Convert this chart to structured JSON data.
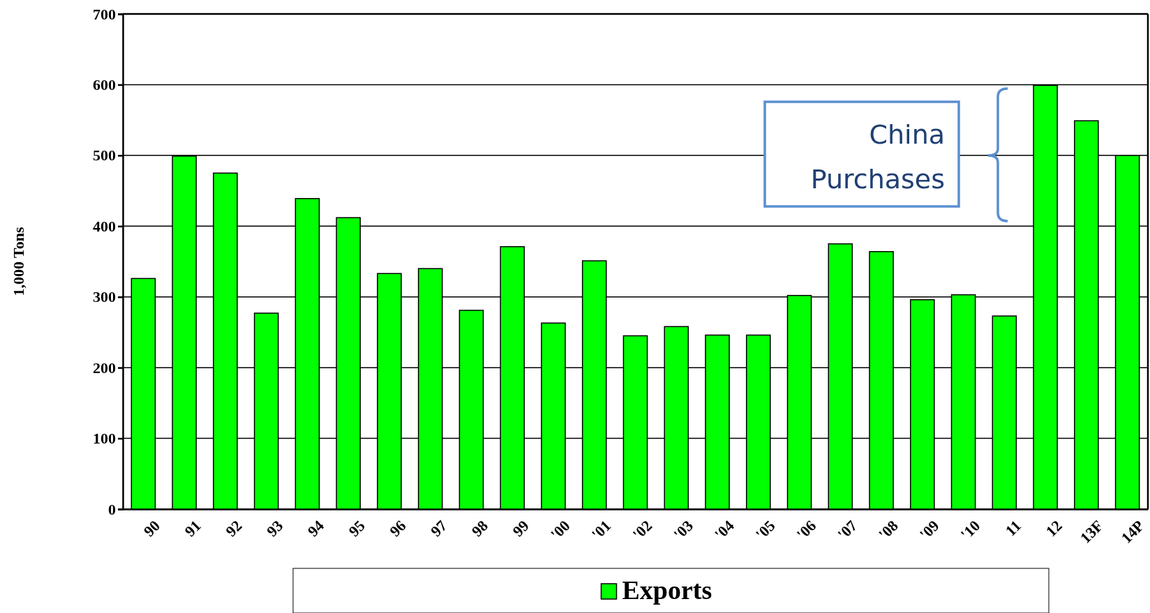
{
  "chart_data": {
    "type": "bar",
    "ylabel": "1,000 Tons",
    "categories": [
      "90",
      "91",
      "92",
      "93",
      "94",
      "95",
      "96",
      "97",
      "98",
      "99",
      "'00",
      "'01",
      "'02",
      "'03",
      "'04",
      "'05",
      "'06",
      "'07",
      "'08",
      "'09",
      "'10",
      "11",
      "12",
      "13F",
      "14P"
    ],
    "series": [
      {
        "name": "Exports",
        "color": "#00ff00",
        "values": [
          326,
          499,
          475,
          277,
          439,
          412,
          333,
          340,
          281,
          371,
          263,
          351,
          245,
          258,
          246,
          246,
          302,
          375,
          364,
          296,
          303,
          273,
          599,
          549,
          500
        ]
      }
    ],
    "ylim": [
      0,
      700
    ],
    "yticks": [
      0,
      100,
      200,
      300,
      400,
      500,
      600,
      700
    ],
    "grid": "y",
    "legend": "bottom",
    "annotations": [
      "China Purchases"
    ]
  }
}
